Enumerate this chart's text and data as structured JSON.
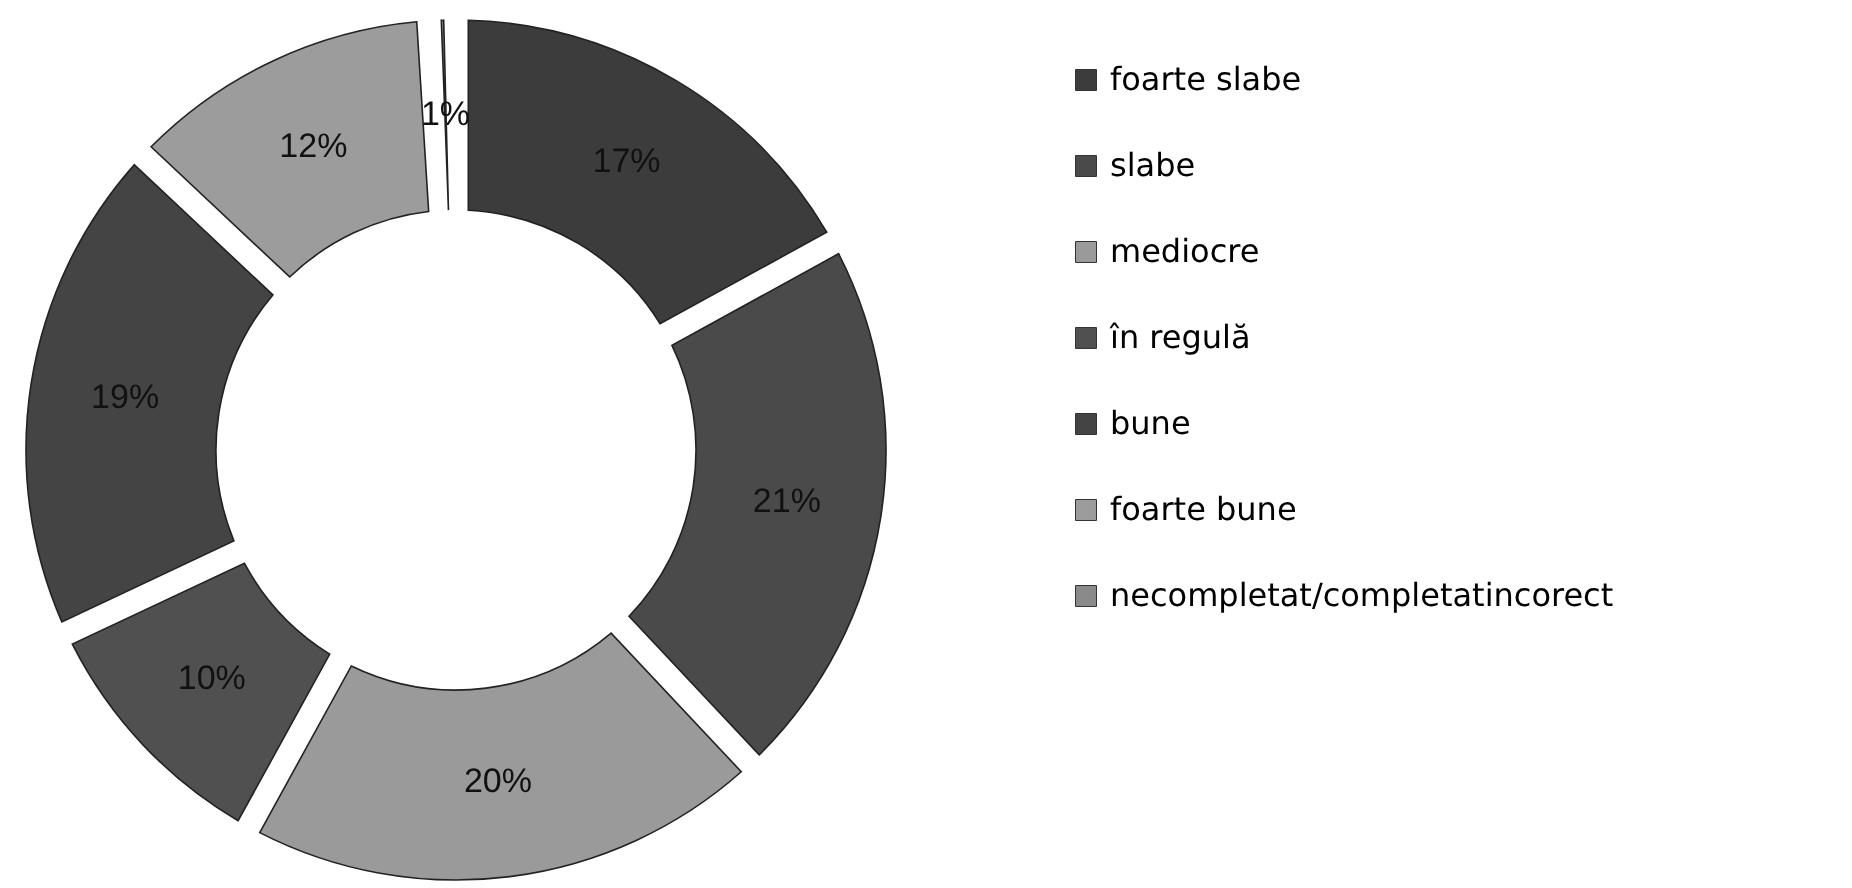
{
  "chart_data": {
    "type": "donut",
    "categories": [
      "foarte slabe",
      "slabe",
      "mediocre",
      "în regulă",
      "bune",
      "foarte bune",
      "necompletat/completatincorect"
    ],
    "values": [
      17,
      21,
      20,
      10,
      19,
      12,
      1
    ],
    "value_labels": [
      "17%",
      "21%",
      "20%",
      "10%",
      "19%",
      "12%",
      "1%"
    ],
    "colors": [
      "#3c3c3c",
      "#4a4a4a",
      "#9a9a9a",
      "#505050",
      "#444444",
      "#9c9c9c",
      "#8a8a8a"
    ],
    "legend": "right"
  }
}
